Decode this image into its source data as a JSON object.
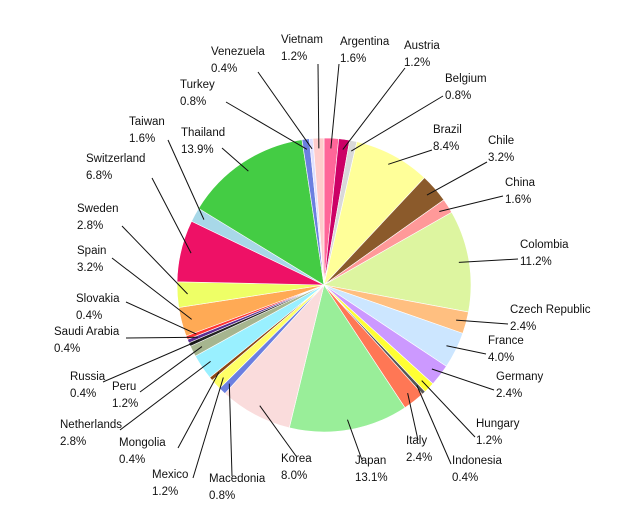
{
  "chart_data": {
    "type": "pie",
    "title": "",
    "start_angle_deg": 0,
    "direction": "clockwise",
    "slices": [
      {
        "label": "Argentina",
        "pct": "1.6%",
        "value": 1.6,
        "color": "#ff6699"
      },
      {
        "label": "Austria",
        "pct": "1.2%",
        "value": 1.2,
        "color": "#cc0066"
      },
      {
        "label": "Belgium",
        "pct": "0.8%",
        "value": 0.8,
        "color": "#d9d9d9"
      },
      {
        "label": "Brazil",
        "pct": "8.4%",
        "value": 8.4,
        "color": "#ffff99"
      },
      {
        "label": "Chile",
        "pct": "3.2%",
        "value": 3.2,
        "color": "#8b5a2b"
      },
      {
        "label": "China",
        "pct": "1.6%",
        "value": 1.6,
        "color": "#ff9999"
      },
      {
        "label": "Colombia",
        "pct": "11.2%",
        "value": 11.2,
        "color": "#ddf5a0"
      },
      {
        "label": "Czech Republic",
        "pct": "2.4%",
        "value": 2.4,
        "color": "#ffbf80"
      },
      {
        "label": "France",
        "pct": "4.0%",
        "value": 4.0,
        "color": "#cce6ff"
      },
      {
        "label": "Germany",
        "pct": "2.4%",
        "value": 2.4,
        "color": "#cc99ff"
      },
      {
        "label": "Hungary",
        "pct": "1.2%",
        "value": 1.2,
        "color": "#ffff33"
      },
      {
        "label": "Indonesia",
        "pct": "0.4%",
        "value": 0.4,
        "color": "#555555"
      },
      {
        "label": "Italy",
        "pct": "2.4%",
        "value": 2.4,
        "color": "#ff7755"
      },
      {
        "label": "Japan",
        "pct": "13.1%",
        "value": 13.1,
        "color": "#99ee99"
      },
      {
        "label": "Korea",
        "pct": "8.0%",
        "value": 8.0,
        "color": "#fadcdc"
      },
      {
        "label": "Macedonia",
        "pct": "0.8%",
        "value": 0.8,
        "color": "#6b7fe0"
      },
      {
        "label": "Mexico",
        "pct": "1.2%",
        "value": 1.2,
        "color": "#ffff66"
      },
      {
        "label": "Mongolia",
        "pct": "0.4%",
        "value": 0.4,
        "color": "#8b4513"
      },
      {
        "label": "Netherlands",
        "pct": "2.8%",
        "value": 2.8,
        "color": "#99f0ff"
      },
      {
        "label": "Peru",
        "pct": "1.2%",
        "value": 1.2,
        "color": "#a6b58f"
      },
      {
        "label": "Russia",
        "pct": "0.4%",
        "value": 0.4,
        "color": "#222222"
      },
      {
        "label": "Saudi Arabia",
        "pct": "0.4%",
        "value": 0.4,
        "color": "#5a2d91"
      },
      {
        "label": "Slovakia",
        "pct": "0.4%",
        "value": 0.4,
        "color": "#ff3333"
      },
      {
        "label": "Spain",
        "pct": "3.2%",
        "value": 3.2,
        "color": "#ffaa55"
      },
      {
        "label": "Sweden",
        "pct": "2.8%",
        "value": 2.8,
        "color": "#eeff66"
      },
      {
        "label": "Switzerland",
        "pct": "6.8%",
        "value": 6.8,
        "color": "#ee1166"
      },
      {
        "label": "Taiwan",
        "pct": "1.6%",
        "value": 1.6,
        "color": "#a8d8e8"
      },
      {
        "label": "Thailand",
        "pct": "13.9%",
        "value": 13.9,
        "color": "#44cc44"
      },
      {
        "label": "Turkey",
        "pct": "0.8%",
        "value": 0.8,
        "color": "#6b7fe0"
      },
      {
        "label": "Venezuela",
        "pct": "0.4%",
        "value": 0.4,
        "color": "#e0e0ff"
      },
      {
        "label": "Vietnam",
        "pct": "1.2%",
        "value": 1.2,
        "color": "#ffcccc"
      }
    ]
  }
}
